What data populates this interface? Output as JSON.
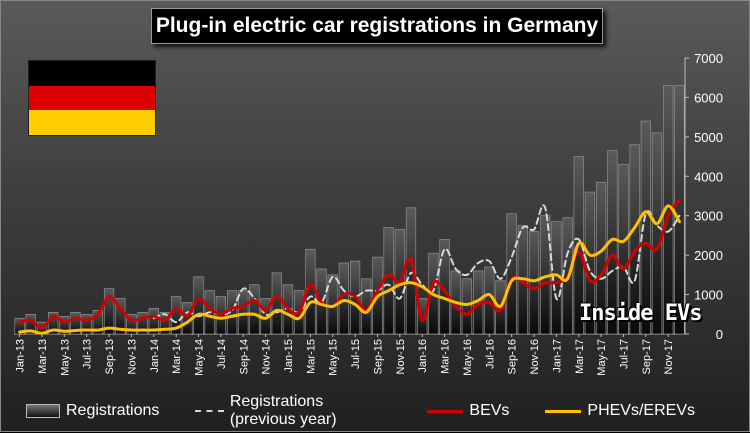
{
  "colors": {
    "bars": "#2a2a2a",
    "prev": "#d8d8d8",
    "bev": "#d40000",
    "phev": "#ffc000",
    "flag_black": "#000000",
    "flag_red": "#dd0000",
    "flag_gold": "#ffce00"
  },
  "brand": "Inside EVs",
  "legend": {
    "registrations": "Registrations",
    "previous": "Registrations (previous year)",
    "bev": "BEVs",
    "phev": "PHEVs/EREVs"
  },
  "chart_data": {
    "type": "bar",
    "title": "Plug-in electric car registrations in Germany",
    "xlabel": "",
    "ylabel": "",
    "ylim": [
      0,
      7000
    ],
    "yticks": [
      0,
      1000,
      2000,
      3000,
      4000,
      5000,
      6000,
      7000
    ],
    "grid": false,
    "legend_position": "bottom",
    "categories": [
      "Jan-13",
      "Feb-13",
      "Mar-13",
      "Apr-13",
      "May-13",
      "Jun-13",
      "Jul-13",
      "Aug-13",
      "Sep-13",
      "Oct-13",
      "Nov-13",
      "Dec-13",
      "Jan-14",
      "Feb-14",
      "Mar-14",
      "Apr-14",
      "May-14",
      "Jun-14",
      "Jul-14",
      "Aug-14",
      "Sep-14",
      "Oct-14",
      "Nov-14",
      "Dec-14",
      "Jan-15",
      "Feb-15",
      "Mar-15",
      "Apr-15",
      "May-15",
      "Jun-15",
      "Jul-15",
      "Aug-15",
      "Sep-15",
      "Oct-15",
      "Nov-15",
      "Dec-15",
      "Jan-16",
      "Feb-16",
      "Mar-16",
      "Apr-16",
      "May-16",
      "Jun-16",
      "Jul-16",
      "Aug-16",
      "Sep-16",
      "Oct-16",
      "Nov-16",
      "Dec-16",
      "Jan-17",
      "Feb-17",
      "Mar-17",
      "Apr-17",
      "May-17",
      "Jun-17",
      "Jul-17",
      "Aug-17",
      "Sep-17",
      "Oct-17",
      "Nov-17",
      "Dec-17"
    ],
    "x_tick_labels": [
      "Jan-13",
      "Mar-13",
      "May-13",
      "Jul-13",
      "Sep-13",
      "Nov-13",
      "Jan-14",
      "Mar-14",
      "May-14",
      "Jul-14",
      "Sep-14",
      "Nov-14",
      "Jan-15",
      "Mar-15",
      "May-15",
      "Jul-15",
      "Sep-15",
      "Nov-15",
      "Jan-16",
      "Mar-16",
      "May-16",
      "Jul-16",
      "Sep-16",
      "Nov-16",
      "Jan-17",
      "Mar-17",
      "May-17",
      "Jul-17",
      "Sep-17",
      "Nov-17"
    ],
    "series": [
      {
        "name": "Registrations",
        "type": "bar",
        "values": [
          400,
          500,
          300,
          550,
          450,
          550,
          500,
          600,
          1150,
          900,
          500,
          550,
          650,
          550,
          950,
          800,
          1450,
          1100,
          950,
          1100,
          1100,
          1250,
          900,
          1550,
          1250,
          1100,
          2150,
          1650,
          1500,
          1800,
          1850,
          1400,
          1950,
          2700,
          2650,
          3200,
          900,
          2050,
          2400,
          1600,
          1400,
          1600,
          1700,
          1350,
          3050,
          2750,
          2600,
          3000,
          2850,
          2950,
          4500,
          3600,
          3850,
          4650,
          4300,
          4800,
          5400,
          5100,
          6300,
          6300
        ]
      },
      {
        "name": "Registrations (previous year)",
        "type": "line",
        "values": [
          null,
          null,
          null,
          null,
          null,
          null,
          null,
          null,
          null,
          null,
          null,
          null,
          400,
          500,
          300,
          550,
          450,
          550,
          500,
          600,
          1150,
          900,
          500,
          550,
          650,
          550,
          950,
          800,
          1450,
          1100,
          950,
          1100,
          1100,
          1250,
          900,
          1550,
          1250,
          1100,
          2150,
          1650,
          1500,
          1800,
          1850,
          1400,
          1950,
          2700,
          2650,
          3200,
          900,
          2050,
          2400,
          1600,
          1400,
          1600,
          1700,
          1350,
          3050,
          2750,
          2600,
          3000
        ]
      },
      {
        "name": "BEVs",
        "type": "line",
        "values": [
          300,
          350,
          150,
          450,
          300,
          400,
          350,
          500,
          950,
          650,
          350,
          400,
          450,
          350,
          650,
          450,
          900,
          650,
          500,
          650,
          700,
          850,
          600,
          950,
          650,
          550,
          1250,
          800,
          700,
          1000,
          950,
          600,
          1100,
          1500,
          1300,
          1900,
          350,
          1300,
          1100,
          700,
          500,
          750,
          800,
          600,
          1400,
          1300,
          1150,
          1300,
          1300,
          1450,
          2100,
          1350,
          1500,
          2000,
          1650,
          2100,
          2300,
          2150,
          3000,
          3400
        ]
      },
      {
        "name": "PHEVs/EREVs",
        "type": "line",
        "values": [
          50,
          80,
          20,
          100,
          70,
          90,
          100,
          100,
          150,
          120,
          100,
          100,
          100,
          120,
          150,
          300,
          500,
          450,
          400,
          450,
          500,
          500,
          400,
          600,
          500,
          400,
          800,
          750,
          700,
          850,
          750,
          550,
          950,
          1100,
          1250,
          1300,
          1200,
          1000,
          900,
          800,
          750,
          850,
          1000,
          700,
          1350,
          1400,
          1350,
          1450,
          1500,
          1400,
          2300,
          2000,
          2100,
          2400,
          2350,
          2700,
          3100,
          2800,
          3250,
          2850
        ]
      }
    ]
  }
}
